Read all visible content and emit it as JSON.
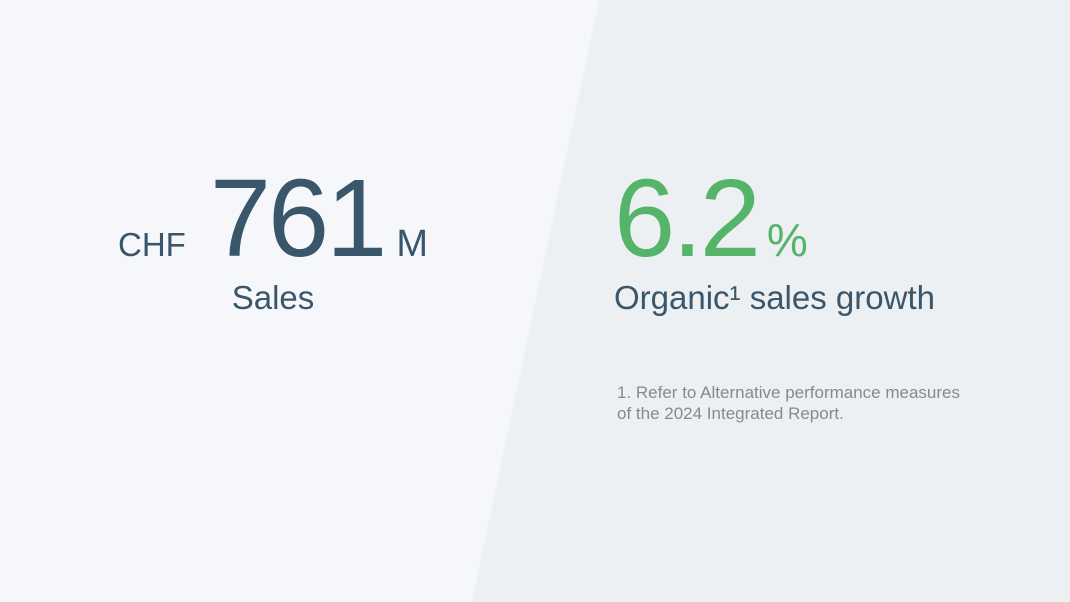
{
  "colors": {
    "bg-left": "#f5f7fa",
    "bg-right": "#ecf0f2",
    "ink-dark": "#3a566b",
    "ink-muted": "#828a94",
    "accent-green": "#55b469"
  },
  "left_stat": {
    "currency": "CHF",
    "value": "761",
    "unit": "M",
    "label": "Sales"
  },
  "right_stat": {
    "value": "6.2",
    "unit": "%",
    "label": "Organic¹ sales growth"
  },
  "footnote": {
    "text": "1. Refer to Alternative performance measures of the 2024 Integrated Report."
  }
}
